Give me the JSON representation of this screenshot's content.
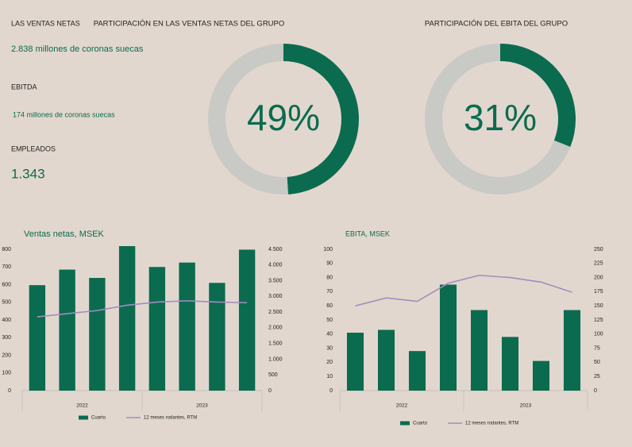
{
  "kpis": [
    {
      "label": "LAS VENTAS NETAS",
      "value": "2.838 millones de coronas suecas"
    },
    {
      "label": "EBITDA",
      "value": "174 millones de coronas suecas"
    },
    {
      "label": "EMPLEADOS",
      "value": "1.343"
    }
  ],
  "chart_data": [
    {
      "type": "donut",
      "title": "PARTICIPACIÓN EN LAS VENTAS NETAS DEL GRUPO",
      "values": [
        49,
        51
      ],
      "value_labels": [
        "49%",
        null
      ],
      "colors": [
        "#0b6b4f",
        "#c9c9c6"
      ]
    },
    {
      "type": "donut",
      "title": "PARTICIPACIÓN DEL EBITA DEL GRUPO",
      "values": [
        31,
        69
      ],
      "value_labels": [
        "31%",
        null
      ],
      "colors": [
        "#0b6b4f",
        "#c9c9c6"
      ]
    },
    {
      "type": "bar",
      "title": "Ventas netas, MSEK",
      "categories": [
        null,
        null,
        null,
        null,
        null,
        null,
        null,
        null
      ],
      "x_groups": [
        "2022",
        "2023"
      ],
      "series": [
        {
          "name": "Cuarto",
          "color": "#0b6b4f",
          "values": [
            597,
            685,
            638,
            818,
            700,
            725,
            610,
            798
          ]
        },
        {
          "name": "12 meses rodantes, RTM",
          "color": "#a58cc0",
          "type": "line",
          "axis": "y2",
          "values": [
            2350,
            2450,
            2550,
            2720,
            2820,
            2860,
            2820,
            2800
          ]
        }
      ],
      "ylim": [
        0,
        800
      ],
      "yticks": [
        0,
        100,
        200,
        300,
        400,
        500,
        600,
        700,
        800
      ],
      "y2lim": [
        0,
        4500
      ],
      "y2ticks": [
        0,
        500,
        {
          "value": 1000,
          "label": "1.000"
        },
        {
          "value": 1500,
          "label": "1.500"
        },
        {
          "value": 2000,
          "label": "2.000"
        },
        {
          "value": 2500,
          "label": "2.500"
        },
        {
          "value": 3000,
          "label": "3.000"
        },
        {
          "value": 3500,
          "label": "3.500"
        },
        {
          "value": 4000,
          "label": "4.000"
        },
        {
          "value": 4500,
          "label": "4.500"
        }
      ]
    },
    {
      "type": "bar",
      "title": "EBITA, MSEK",
      "categories": [
        null,
        null,
        null,
        null,
        null,
        null,
        null,
        null
      ],
      "x_groups": [
        "2022",
        "2023"
      ],
      "series": [
        {
          "name": "Cuarto",
          "color": "#0b6b4f",
          "values": [
            41,
            43,
            28,
            75,
            57,
            38,
            21,
            57
          ]
        },
        {
          "name": "12 meses rodantes, RTM",
          "color": "#a58cc0",
          "type": "line",
          "axis": "y2",
          "values": [
            150,
            164,
            158,
            190,
            204,
            200,
            192,
            174
          ]
        }
      ],
      "ylim": [
        0,
        100
      ],
      "yticks": [
        0,
        10,
        20,
        30,
        40,
        50,
        60,
        70,
        80,
        90,
        100
      ],
      "y2lim": [
        0,
        250
      ],
      "y2ticks": [
        0,
        25,
        50,
        75,
        100,
        125,
        150,
        175,
        200,
        225,
        250
      ]
    }
  ]
}
